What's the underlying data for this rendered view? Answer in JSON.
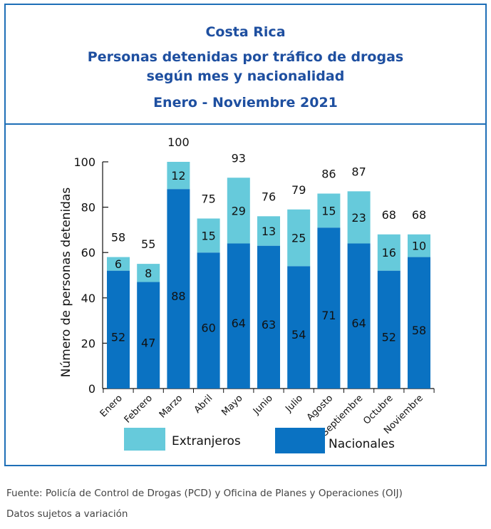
{
  "title_country": "Costa Rica",
  "title_line1": "Personas detenidas  por tráfico de drogas",
  "title_line2": "según mes y nacionalidad",
  "title_period": "Enero - Noviembre 2021",
  "source": "Fuente: Policía de Control de Drogas (PCD) y Oficina de Planes y Operaciones (OIJ)",
  "note": "Datos sujetos a variación",
  "colors": {
    "frame": "#1e6fb7",
    "title": "#1e4fa0",
    "nacionales": "#0a72c2",
    "extranjeros": "#66cadb"
  },
  "chart_data": {
    "type": "bar",
    "stacked": true,
    "categories": [
      "Enero",
      "Febrero",
      "Marzo",
      "Abril",
      "Mayo",
      "Junio",
      "Julio",
      "Agosto",
      "Septiembre",
      "Octubre",
      "Noviembre"
    ],
    "series": [
      {
        "name": "Nacionales",
        "values": [
          52,
          47,
          88,
          60,
          64,
          63,
          54,
          71,
          64,
          52,
          58
        ]
      },
      {
        "name": "Extranjeros",
        "values": [
          6,
          8,
          12,
          15,
          29,
          13,
          25,
          15,
          23,
          16,
          10
        ]
      }
    ],
    "totals": [
      58,
      55,
      100,
      75,
      93,
      76,
      79,
      86,
      87,
      68,
      68
    ],
    "ylabel": "Número de personas detenidas",
    "xlabel": "",
    "ylim": [
      0,
      100
    ],
    "yticks": [
      0,
      20,
      40,
      60,
      80,
      100
    ],
    "grid": false,
    "legend": [
      "Extranjeros",
      "Nacionales"
    ],
    "legend_position": "bottom"
  }
}
